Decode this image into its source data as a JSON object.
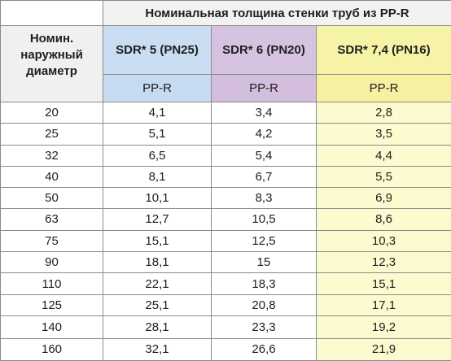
{
  "table": {
    "title": "Номинальная толщина стенки труб из PP-R",
    "left_header": [
      "Номин.",
      "наружный",
      "диаметр"
    ],
    "columns": [
      {
        "label": "SDR* 5 (PN25)",
        "material": "PP-R",
        "color": "#c9ddf3"
      },
      {
        "label": "SDR* 6 (PN20)",
        "material": "PP-R",
        "color": "#d6c3e1"
      },
      {
        "label": "SDR* 7,4 (PN16)",
        "material": "PP-R",
        "color": "#f7f3a6"
      }
    ],
    "rows": [
      {
        "diameter": "20",
        "values": [
          "4,1",
          "3,4",
          "2,8"
        ]
      },
      {
        "diameter": "25",
        "values": [
          "5,1",
          "4,2",
          "3,5"
        ]
      },
      {
        "diameter": "32",
        "values": [
          "6,5",
          "5,4",
          "4,4"
        ]
      },
      {
        "diameter": "40",
        "values": [
          "8,1",
          "6,7",
          "5,5"
        ]
      },
      {
        "diameter": "50",
        "values": [
          "10,1",
          "8,3",
          "6,9"
        ]
      },
      {
        "diameter": "63",
        "values": [
          "12,7",
          "10,5",
          "8,6"
        ]
      },
      {
        "diameter": "75",
        "values": [
          "15,1",
          "12,5",
          "10,3"
        ]
      },
      {
        "diameter": "90",
        "values": [
          "18,1",
          "15",
          "12,3"
        ]
      },
      {
        "diameter": "110",
        "values": [
          "22,1",
          "18,3",
          "15,1"
        ]
      },
      {
        "diameter": "125",
        "values": [
          "25,1",
          "20,8",
          "17,1"
        ]
      },
      {
        "diameter": "140",
        "values": [
          "28,1",
          "23,3",
          "19,2"
        ]
      },
      {
        "diameter": "160",
        "values": [
          "32,1",
          "26,6",
          "21,9"
        ]
      }
    ]
  }
}
